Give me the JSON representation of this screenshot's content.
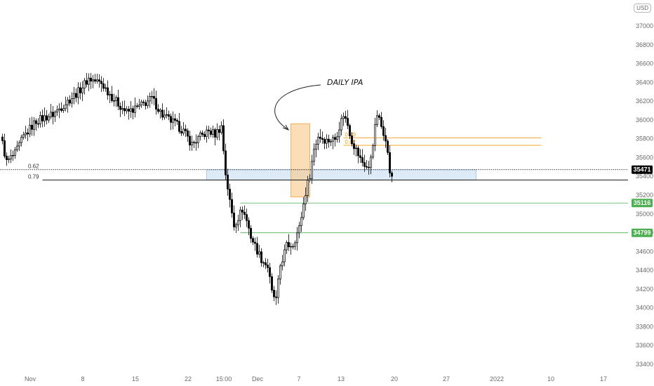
{
  "currency": "USD",
  "chart_data": {
    "type": "candlestick",
    "ylim": [
      33400,
      37100
    ],
    "y_ticks": [
      33400,
      33600,
      33800,
      34000,
      34200,
      34400,
      34600,
      34800,
      35000,
      35200,
      35400,
      35600,
      35800,
      36000,
      36200,
      36400,
      36600,
      36800,
      37000
    ],
    "x_tick_labels": [
      "Nov",
      "8",
      "15",
      "22",
      "15:00",
      "Dec",
      "7",
      "13",
      "20",
      "27",
      "2022",
      "10",
      "17"
    ],
    "anchors": [
      [
        0,
        35750
      ],
      [
        2,
        35550
      ],
      [
        6,
        35640
      ],
      [
        10,
        35820
      ],
      [
        16,
        35990
      ],
      [
        24,
        36060
      ],
      [
        30,
        36180
      ],
      [
        36,
        36300
      ],
      [
        41,
        36440
      ],
      [
        47,
        36390
      ],
      [
        53,
        36220
      ],
      [
        59,
        36080
      ],
      [
        65,
        36140
      ],
      [
        71,
        36230
      ],
      [
        76,
        36050
      ],
      [
        82,
        35960
      ],
      [
        86,
        35880
      ],
      [
        90,
        35740
      ],
      [
        94,
        35820
      ],
      [
        98,
        35880
      ],
      [
        101,
        35850
      ],
      [
        104,
        35930
      ],
      [
        106,
        35430
      ],
      [
        108,
        35130
      ],
      [
        110,
        34880
      ],
      [
        114,
        35050
      ],
      [
        116,
        34930
      ],
      [
        118,
        34760
      ],
      [
        120,
        34660
      ],
      [
        123,
        34520
      ],
      [
        126,
        34440
      ],
      [
        128,
        34160
      ],
      [
        130,
        34080
      ],
      [
        132,
        34450
      ],
      [
        135,
        34660
      ],
      [
        138,
        34680
      ],
      [
        141,
        34850
      ],
      [
        144,
        35230
      ],
      [
        146,
        35420
      ],
      [
        148,
        35690
      ],
      [
        150,
        35830
      ],
      [
        154,
        35780
      ],
      [
        158,
        35800
      ],
      [
        162,
        36060
      ],
      [
        164,
        35950
      ],
      [
        166,
        35780
      ],
      [
        170,
        35580
      ],
      [
        174,
        35470
      ],
      [
        178,
        36060
      ],
      [
        180,
        35930
      ],
      [
        182,
        35820
      ],
      [
        184,
        35450
      ],
      [
        185,
        35400
      ]
    ],
    "last_price": "35471",
    "daily_ipa_box": {
      "start": 137,
      "end": 146,
      "low": 35180,
      "high": 35960
    },
    "zones": [
      {
        "name": "0.62-0.79 zone",
        "start": 97,
        "end": 225,
        "low": 35360,
        "high": 35470
      }
    ],
    "levels": [
      {
        "label": "0.62",
        "price": 35471,
        "style": "dotted",
        "color": "#000000",
        "start": -1,
        "end": 310
      },
      {
        "label": "0.79",
        "price": 35360,
        "style": "solid",
        "color": "#000000",
        "start": 19,
        "end": 300
      },
      {
        "label": "35116",
        "price": 35116,
        "style": "solid",
        "color": "#4caf50",
        "start": 113,
        "end": 300
      },
      {
        "label": "34799",
        "price": 34799,
        "style": "solid",
        "color": "#4caf50",
        "start": 113,
        "end": 300
      },
      {
        "label": "0.79",
        "price": 35810,
        "style": "solid",
        "color": "#f39c12",
        "start": 162,
        "end": 256
      },
      {
        "label": "0.62",
        "price": 35730,
        "style": "solid",
        "color": "#f39c12",
        "start": 162,
        "end": 256
      }
    ],
    "price_tags": [
      {
        "text": "35471",
        "price": 35471,
        "color": "#000000"
      },
      {
        "text": "35116",
        "price": 35116,
        "color": "#4caf50"
      },
      {
        "text": "34799",
        "price": 34799,
        "color": "#4caf50"
      }
    ],
    "annotation": "DAILY IPA"
  }
}
